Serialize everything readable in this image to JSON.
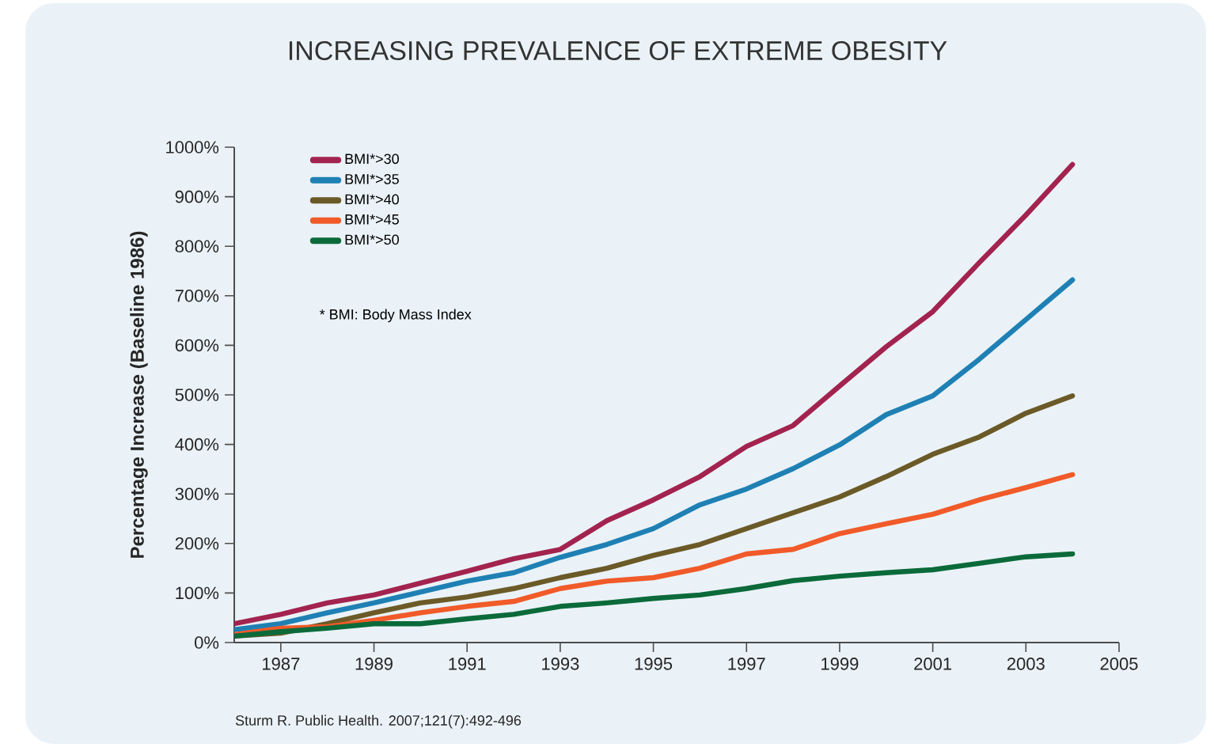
{
  "chart_data": {
    "type": "line",
    "title": "INCREASING PREVALENCE OF EXTREME OBESITY",
    "ylabel": "Percentage Increase (Baseline 1986)",
    "annotations": [
      "* BMI: Body Mass Index",
      "Sturm R. Public Health. 2007;121(7):492-496"
    ],
    "x": [
      1986,
      1987,
      1988,
      1989,
      1990,
      1991,
      1992,
      1993,
      1994,
      1995,
      1996,
      1997,
      1998,
      1999,
      2000,
      2001,
      2002,
      2003,
      2004
    ],
    "xlim": [
      1986,
      2005
    ],
    "xticks": [
      1987,
      1989,
      1991,
      1993,
      1995,
      1997,
      1999,
      2001,
      2003,
      2005
    ],
    "ylim": [
      0,
      1000
    ],
    "yticks": [
      {
        "value": 0,
        "label": "0%"
      },
      {
        "value": 100,
        "label": "100%"
      },
      {
        "value": 200,
        "label": "200%"
      },
      {
        "value": 300,
        "label": "300%"
      },
      {
        "value": 400,
        "label": "400%"
      },
      {
        "value": 500,
        "label": "500%"
      },
      {
        "value": 600,
        "label": "600%"
      },
      {
        "value": 700,
        "label": "700%"
      },
      {
        "value": 800,
        "label": "800%"
      },
      {
        "value": 900,
        "label": "900%"
      },
      {
        "value": 1000,
        "label": "1000%"
      }
    ],
    "legend": "top left",
    "grid": false,
    "marker": "none",
    "line_style": "solid",
    "series": [
      {
        "name": "BMI*>30",
        "color": "#a3234f",
        "values": [
          38,
          57,
          80,
          96,
          120,
          144,
          169,
          188,
          246,
          288,
          335,
          396,
          438,
          518,
          597,
          668,
          767,
          863,
          965
        ]
      },
      {
        "name": "BMI*>35",
        "color": "#1f80b4",
        "values": [
          26,
          38,
          60,
          80,
          102,
          124,
          141,
          172,
          198,
          230,
          278,
          310,
          351,
          399,
          460,
          498,
          572,
          652,
          732
        ]
      },
      {
        "name": "BMI*>40",
        "color": "#6b5a27",
        "values": [
          13,
          19,
          38,
          60,
          80,
          92,
          109,
          131,
          150,
          176,
          198,
          230,
          262,
          294,
          335,
          380,
          415,
          463,
          498
        ]
      },
      {
        "name": "BMI*>45",
        "color": "#f15a29",
        "values": [
          16,
          29,
          32,
          45,
          60,
          73,
          83,
          109,
          124,
          131,
          150,
          179,
          188,
          220,
          240,
          259,
          288,
          313,
          339
        ]
      },
      {
        "name": "BMI*>50",
        "color": "#0b6a3a",
        "values": [
          13,
          22,
          29,
          38,
          38,
          48,
          57,
          73,
          80,
          89,
          96,
          109,
          125,
          134,
          141,
          147,
          160,
          173,
          179
        ]
      }
    ]
  }
}
